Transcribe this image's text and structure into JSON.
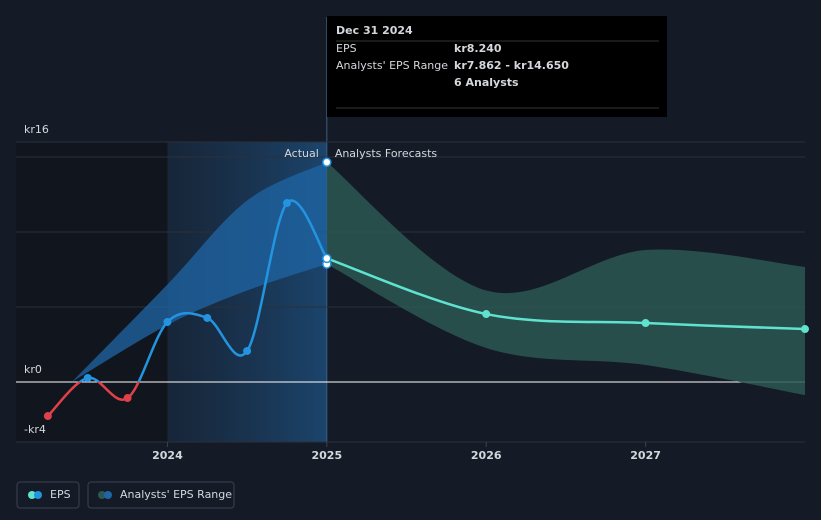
{
  "chart_data": {
    "type": "line",
    "xlim": [
      2023.05,
      2028.0
    ],
    "xticks": [
      2024,
      2025,
      2026,
      2027
    ],
    "ylim": [
      -4,
      16
    ],
    "yticks": [
      {
        "value": -4,
        "label": "-kr4"
      },
      {
        "value": 0,
        "label": "kr0"
      },
      {
        "value": 16,
        "label": "kr16"
      }
    ],
    "ygrid": [
      5,
      10,
      15
    ],
    "actual_label": "Actual",
    "forecast_label": "Analysts Forecasts",
    "eps": {
      "name": "EPS",
      "color": "#2394df",
      "negative_color": "#e0404a",
      "x": [
        2023.25,
        2023.5,
        2023.75,
        2024.0,
        2024.25,
        2024.5,
        2024.75,
        2025.0
      ],
      "values": [
        -2.27,
        0.27,
        -1.07,
        4.0,
        4.27,
        2.07,
        11.93,
        8.24
      ]
    },
    "eps_forecast": {
      "color": "#5fe3cf",
      "x": [
        2025,
        2026,
        2027,
        2028
      ],
      "values": [
        8.24,
        4.53,
        3.93,
        3.53
      ]
    },
    "range": {
      "name": "Analysts' EPS Range",
      "color": "#1f66a6",
      "forecast_color": "#2c5752",
      "x": [
        2023.4,
        2024,
        2024.5,
        2025,
        2026,
        2027,
        2028
      ],
      "low": [
        0,
        3.8,
        6.1,
        7.862,
        2.27,
        1.13,
        -0.87
      ],
      "high": [
        0,
        6.5,
        12.1,
        14.65,
        6.1,
        8.8,
        7.67
      ]
    },
    "tooltip": {
      "date": "Dec 31 2024",
      "eps_label": "EPS",
      "eps_value": "kr8.240",
      "range_label": "Analysts' EPS Range",
      "range_value": "kr7.862 - kr14.650",
      "analysts": "6 Analysts"
    }
  }
}
